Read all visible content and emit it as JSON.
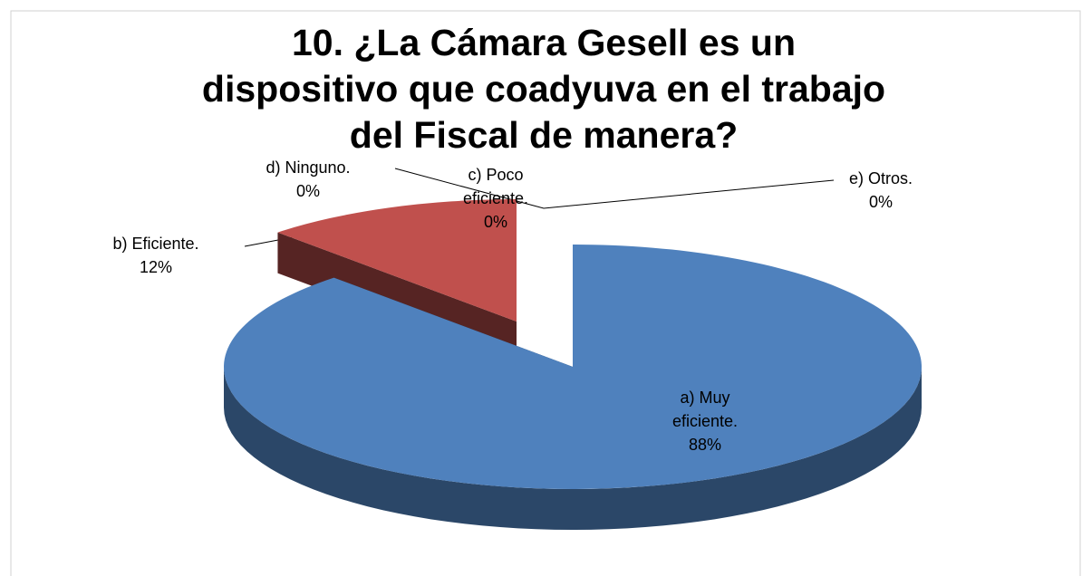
{
  "chart_data": {
    "type": "pie",
    "title": "10. ¿La Cámara Gesell es un dispositivo que coadyuva en el trabajo del Fiscal de manera?",
    "categories": [
      "a) Muy eficiente.",
      "b) Eficiente.",
      "c) Poco eficiente.",
      "d) Ninguno.",
      "e) Otros."
    ],
    "values": [
      88,
      12,
      0,
      0,
      0
    ],
    "value_labels": [
      "88%",
      "12%",
      "0%",
      "0%",
      "0%"
    ],
    "colors": [
      "#4f81bd",
      "#c0504d",
      "#9bbb59",
      "#8064a2",
      "#4bacc6"
    ]
  }
}
